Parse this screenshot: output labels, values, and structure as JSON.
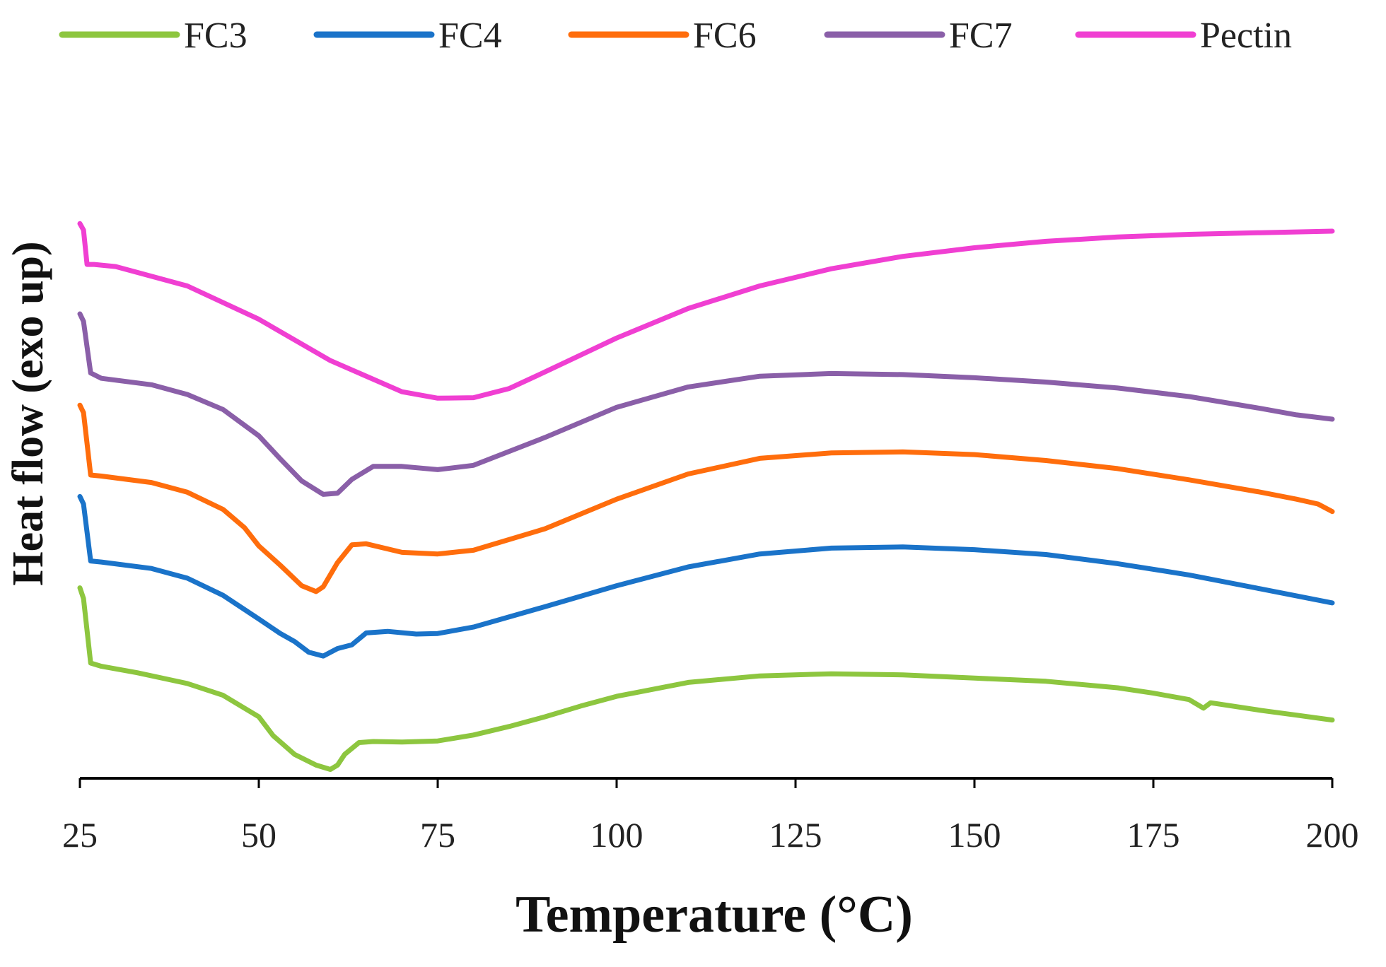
{
  "chart_data": {
    "type": "line",
    "title": "",
    "xlabel": "Temperature (°C)",
    "ylabel": "Heat flow (exo up)",
    "xlim": [
      25,
      200
    ],
    "ylim": [
      0,
      100
    ],
    "x_ticks": [
      "25",
      "50",
      "75",
      "100",
      "125",
      "150",
      "175",
      "200"
    ],
    "y_ticks": [],
    "grid": false,
    "legend_position": "top",
    "series": [
      {
        "name": "FC3",
        "color": "#8dc63f",
        "points": [
          [
            25,
            34
          ],
          [
            25.5,
            32
          ],
          [
            26.5,
            20
          ],
          [
            28,
            19.4
          ],
          [
            33,
            18.2
          ],
          [
            40,
            16.2
          ],
          [
            45,
            14
          ],
          [
            50,
            10
          ],
          [
            52,
            6.5
          ],
          [
            55,
            3
          ],
          [
            58,
            1
          ],
          [
            60,
            0.2
          ],
          [
            61,
            1
          ],
          [
            62,
            3
          ],
          [
            64,
            5.2
          ],
          [
            66,
            5.4
          ],
          [
            70,
            5.3
          ],
          [
            75,
            5.5
          ],
          [
            80,
            6.6
          ],
          [
            85,
            8.2
          ],
          [
            90,
            10
          ],
          [
            95,
            12
          ],
          [
            100,
            13.8
          ],
          [
            110,
            16.4
          ],
          [
            120,
            17.6
          ],
          [
            130,
            18
          ],
          [
            140,
            17.8
          ],
          [
            150,
            17.2
          ],
          [
            160,
            16.6
          ],
          [
            170,
            15.4
          ],
          [
            175,
            14.4
          ],
          [
            180,
            13.2
          ],
          [
            182,
            11.6
          ],
          [
            183,
            12.6
          ],
          [
            190,
            11.2
          ],
          [
            195,
            10.3
          ],
          [
            200,
            9.4
          ]
        ]
      },
      {
        "name": "FC4",
        "color": "#1a73c9",
        "points": [
          [
            25,
            51
          ],
          [
            25.5,
            49.6
          ],
          [
            26.5,
            39
          ],
          [
            28,
            38.8
          ],
          [
            35,
            37.6
          ],
          [
            40,
            35.8
          ],
          [
            45,
            32.6
          ],
          [
            50,
            28.2
          ],
          [
            53,
            25.5
          ],
          [
            55,
            24
          ],
          [
            57,
            22
          ],
          [
            59,
            21.3
          ],
          [
            61,
            22.7
          ],
          [
            63,
            23.4
          ],
          [
            65,
            25.6
          ],
          [
            68,
            25.9
          ],
          [
            72,
            25.4
          ],
          [
            75,
            25.5
          ],
          [
            80,
            26.7
          ],
          [
            90,
            30.5
          ],
          [
            100,
            34.4
          ],
          [
            110,
            37.9
          ],
          [
            120,
            40.3
          ],
          [
            130,
            41.4
          ],
          [
            140,
            41.6
          ],
          [
            150,
            41.1
          ],
          [
            160,
            40.2
          ],
          [
            170,
            38.5
          ],
          [
            180,
            36.4
          ],
          [
            190,
            33.8
          ],
          [
            200,
            31.2
          ]
        ]
      },
      {
        "name": "FC6",
        "color": "#ff6d0c",
        "points": [
          [
            25,
            68
          ],
          [
            25.5,
            66.6
          ],
          [
            26.5,
            55
          ],
          [
            28,
            54.8
          ],
          [
            35,
            53.6
          ],
          [
            40,
            51.8
          ],
          [
            45,
            48.6
          ],
          [
            48,
            45.2
          ],
          [
            50,
            41.8
          ],
          [
            53,
            38.2
          ],
          [
            56,
            34.4
          ],
          [
            58,
            33.3
          ],
          [
            59,
            34.2
          ],
          [
            61,
            38.7
          ],
          [
            63,
            42
          ],
          [
            65,
            42.2
          ],
          [
            70,
            40.6
          ],
          [
            75,
            40.3
          ],
          [
            80,
            41
          ],
          [
            90,
            45
          ],
          [
            100,
            50.5
          ],
          [
            110,
            55.2
          ],
          [
            120,
            58.1
          ],
          [
            130,
            59.1
          ],
          [
            140,
            59.3
          ],
          [
            150,
            58.8
          ],
          [
            160,
            57.7
          ],
          [
            170,
            56.2
          ],
          [
            180,
            54.1
          ],
          [
            190,
            51.8
          ],
          [
            195,
            50.5
          ],
          [
            198,
            49.6
          ],
          [
            200,
            48.2
          ]
        ]
      },
      {
        "name": "FC7",
        "color": "#8a5fa8",
        "points": [
          [
            25,
            85
          ],
          [
            25.5,
            83.6
          ],
          [
            26.5,
            74
          ],
          [
            28,
            73
          ],
          [
            35,
            71.8
          ],
          [
            40,
            70
          ],
          [
            45,
            67.2
          ],
          [
            50,
            62.3
          ],
          [
            53,
            58
          ],
          [
            56,
            53.9
          ],
          [
            59,
            51.4
          ],
          [
            61,
            51.6
          ],
          [
            63,
            54.2
          ],
          [
            66,
            56.6
          ],
          [
            70,
            56.6
          ],
          [
            75,
            56
          ],
          [
            80,
            56.8
          ],
          [
            90,
            62
          ],
          [
            100,
            67.6
          ],
          [
            110,
            71.4
          ],
          [
            120,
            73.4
          ],
          [
            130,
            73.9
          ],
          [
            140,
            73.7
          ],
          [
            150,
            73.1
          ],
          [
            160,
            72.3
          ],
          [
            170,
            71.2
          ],
          [
            180,
            69.6
          ],
          [
            190,
            67.4
          ],
          [
            195,
            66.2
          ],
          [
            200,
            65.4
          ]
        ]
      },
      {
        "name": "Pectin",
        "color": "#f03fd2",
        "points": [
          [
            25,
            101.8
          ],
          [
            25.5,
            100.6
          ],
          [
            26,
            94.2
          ],
          [
            27,
            94.2
          ],
          [
            30,
            93.8
          ],
          [
            40,
            90.2
          ],
          [
            50,
            84
          ],
          [
            60,
            76.3
          ],
          [
            70,
            70.5
          ],
          [
            75,
            69.3
          ],
          [
            80,
            69.4
          ],
          [
            85,
            71.1
          ],
          [
            90,
            74.2
          ],
          [
            100,
            80.5
          ],
          [
            110,
            86
          ],
          [
            120,
            90.2
          ],
          [
            130,
            93.4
          ],
          [
            140,
            95.7
          ],
          [
            150,
            97.3
          ],
          [
            160,
            98.5
          ],
          [
            170,
            99.3
          ],
          [
            180,
            99.8
          ],
          [
            190,
            100.1
          ],
          [
            200,
            100.4
          ]
        ]
      }
    ]
  }
}
